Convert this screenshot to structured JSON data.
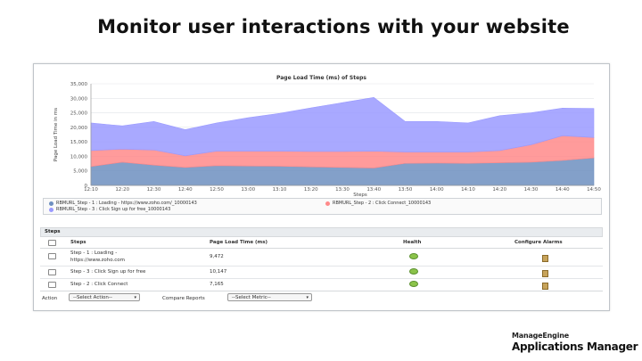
{
  "headline": "Monitor user interactions with your website",
  "chart_data": {
    "type": "area",
    "title": "Page Load Time (ms) of Steps",
    "xlabel": "Steps",
    "ylabel": "Page Load Time in ms",
    "ylim": [
      0,
      35000
    ],
    "yticks": [
      "0",
      "5,000",
      "10,000",
      "15,000",
      "20,000",
      "25,000",
      "30,000",
      "35,000"
    ],
    "categories": [
      "12:10",
      "12:20",
      "12:30",
      "12:40",
      "12:50",
      "13:00",
      "13:10",
      "13:20",
      "13:30",
      "13:40",
      "13:50",
      "14:00",
      "14:10",
      "14:20",
      "14:30",
      "14:40",
      "14:50"
    ],
    "series": [
      {
        "name": "RBMURL_Step - 1 : Loading - https://www.zoho.com/_10000143",
        "color": "#6d8fc0",
        "values": [
          6500,
          8000,
          7000,
          6200,
          6800,
          6700,
          6600,
          6400,
          6200,
          6000,
          7600,
          7700,
          7600,
          7800,
          8000,
          8600,
          9500
        ]
      },
      {
        "name": "RBMURL_Step - 2 : Click Connect_10000143",
        "color": "#ff8a8a",
        "values": [
          5500,
          4500,
          5200,
          4000,
          5000,
          5100,
          5200,
          5300,
          5500,
          5800,
          3900,
          3800,
          3900,
          4200,
          6000,
          8500,
          7000
        ]
      },
      {
        "name": "RBMURL_Step - 3 : Click Sign up for free_10000143",
        "color": "#9a9aff",
        "values": [
          9500,
          8000,
          9800,
          9000,
          9700,
          11500,
          13000,
          15000,
          16800,
          18500,
          10500,
          10500,
          10000,
          12000,
          11000,
          9500,
          10000
        ]
      }
    ]
  },
  "steps_panel": {
    "title": "Steps",
    "columns": [
      "Steps",
      "Page Load Time (ms)",
      "Health",
      "Configure Alarms"
    ],
    "rows": [
      {
        "step_line1": "Step - 1 : Loading -",
        "step_line2": "https://www.zoho.com",
        "time": "9,472",
        "health": "green",
        "alarm_icon": "alarm-bell-icon"
      },
      {
        "step_line1": "Step - 3 : Click Sign up for free",
        "step_line2": "",
        "time": "10,147",
        "health": "green",
        "alarm_icon": "alarm-bell-icon"
      },
      {
        "step_line1": "Step - 2 : Click Connect",
        "step_line2": "",
        "time": "7,165",
        "health": "green",
        "alarm_icon": "alarm-bell-icon"
      }
    ]
  },
  "action_bar": {
    "action_label": "Action",
    "action_select": "--Select Action--",
    "compare_label": "Compare Reports",
    "metric_select": "--Select Metric--"
  },
  "brand": {
    "line1": "ManageEngine",
    "line2": "Applications Manager"
  }
}
